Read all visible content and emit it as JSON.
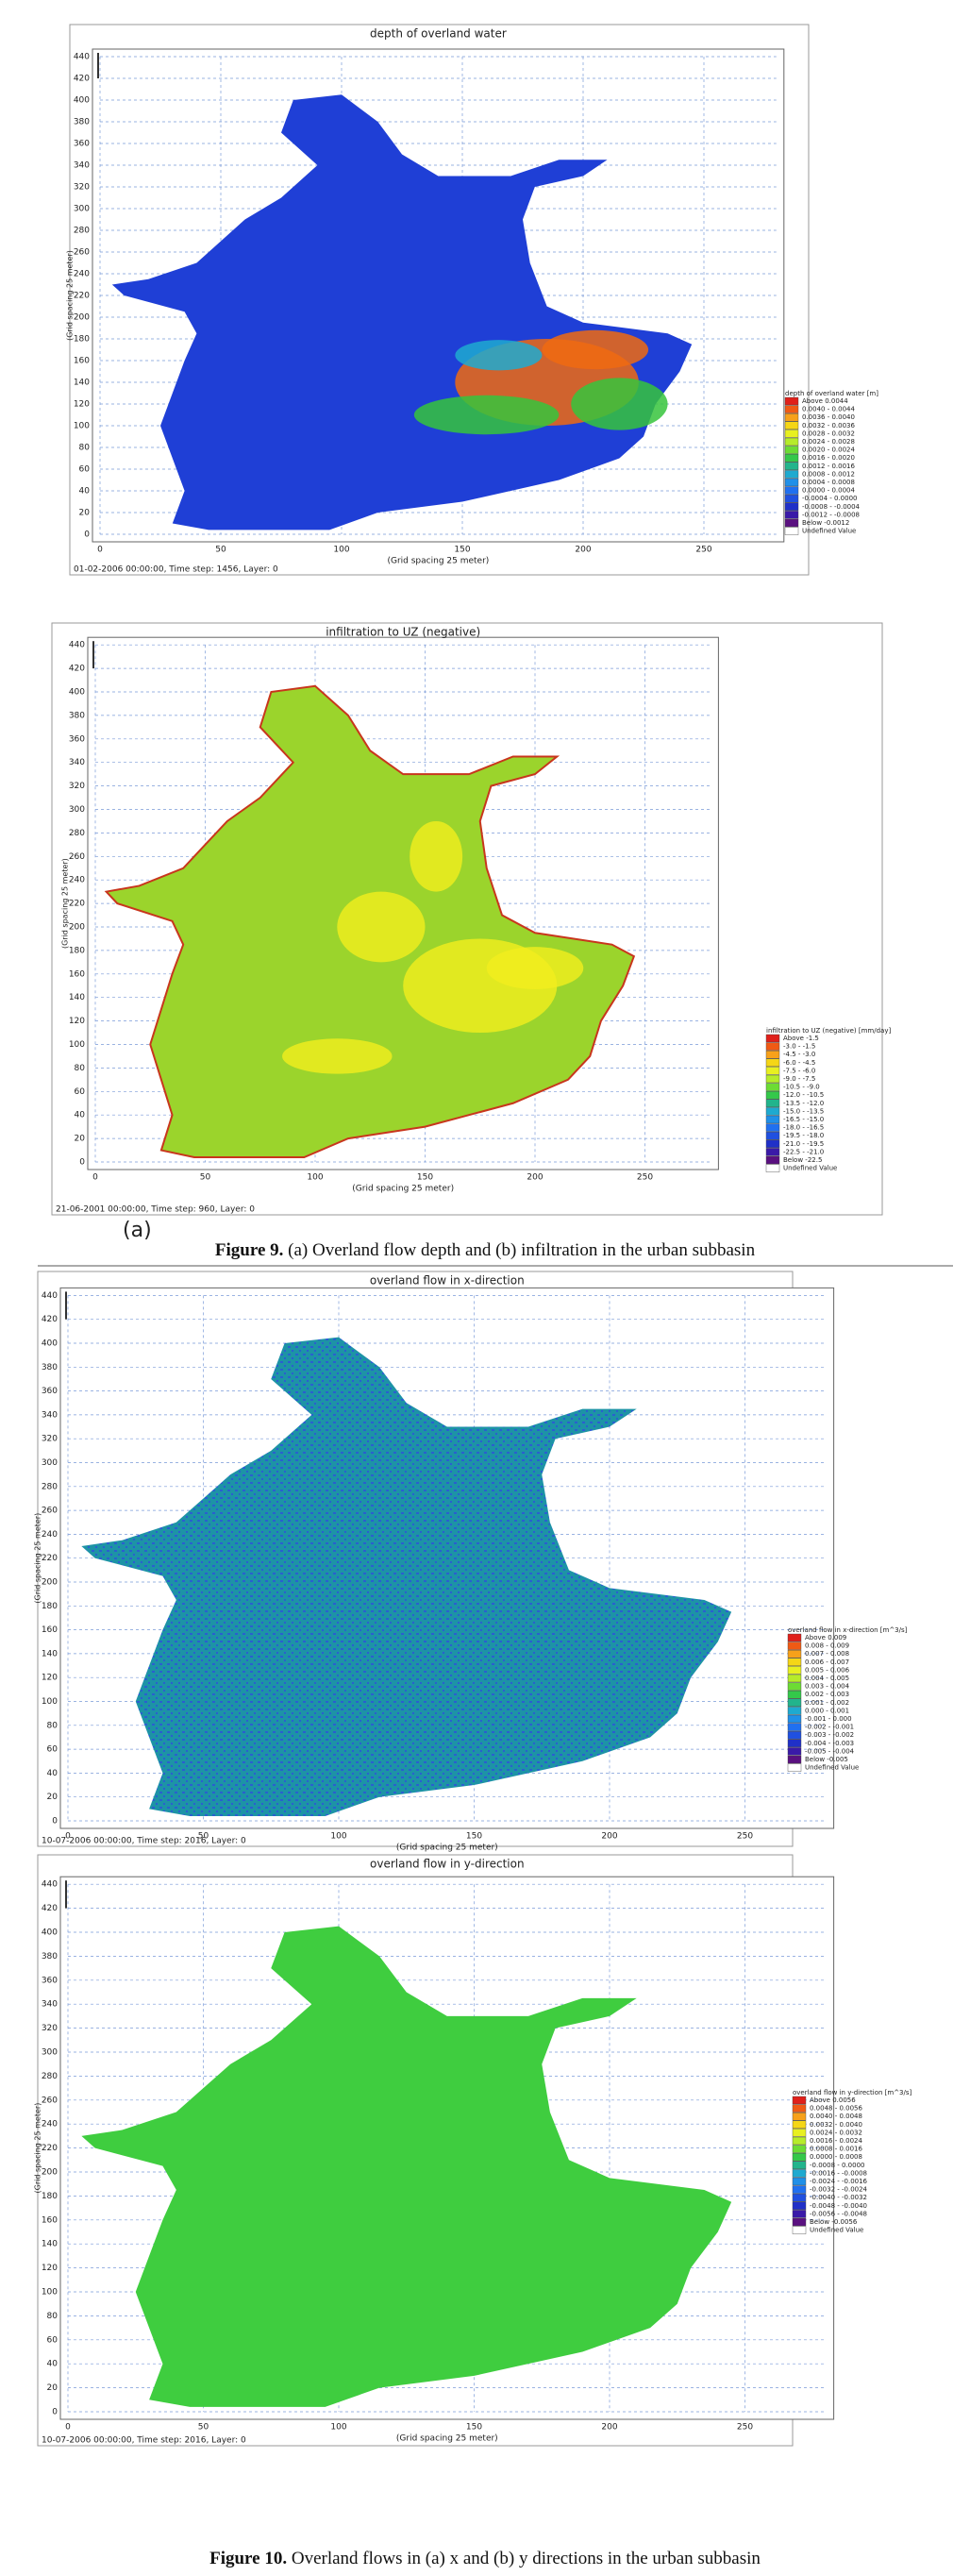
{
  "figures": [
    {
      "title": "depth of overland water",
      "y_label": "(Grid spacing 25 meter)",
      "x_label": "(Grid spacing 25 meter)",
      "footer": "01-02-2006 00:00:00, Time step: 1456, Layer: 0",
      "yticks": [
        0,
        20,
        40,
        60,
        80,
        100,
        120,
        140,
        160,
        180,
        200,
        220,
        240,
        260,
        280,
        300,
        320,
        340,
        360,
        380,
        400,
        420,
        440
      ],
      "xticks": [
        0,
        50,
        100,
        150,
        200,
        250
      ],
      "legend_title": "depth of overland water [m]",
      "legend": [
        "Above 0.0044",
        "0.0040 - 0.0044",
        "0.0036 - 0.0040",
        "0.0032 - 0.0036",
        "0.0028 - 0.0032",
        "0.0024 - 0.0028",
        "0.0020 - 0.0024",
        "0.0016 - 0.0020",
        "0.0012 - 0.0016",
        "0.0008 - 0.0012",
        "0.0004 - 0.0008",
        "0.0000 - 0.0004",
        "-0.0004 - 0.0000",
        "-0.0008 - -0.0004",
        "-0.0012 - -0.0008",
        "Below -0.0012",
        "Undefined Value"
      ]
    },
    {
      "title": "infiltration to UZ (negative)",
      "y_label": "(Grid spacing 25 meter)",
      "x_label": "(Grid spacing 25 meter)",
      "footer": "21-06-2001 00:00:00, Time step: 960, Layer: 0",
      "yticks": [
        0,
        20,
        40,
        60,
        80,
        100,
        120,
        140,
        160,
        180,
        200,
        220,
        240,
        260,
        280,
        300,
        320,
        340,
        360,
        380,
        400,
        420,
        440
      ],
      "xticks": [
        0,
        50,
        100,
        150,
        200,
        250
      ],
      "legend_title": "infiltration to UZ (negative) [mm/day]",
      "legend": [
        "Above -1.5",
        "-3.0 - -1.5",
        "-4.5 - -3.0",
        "-6.0 - -4.5",
        "-7.5 - -6.0",
        "-9.0 - -7.5",
        "-10.5 - -9.0",
        "-12.0 - -10.5",
        "-13.5 - -12.0",
        "-15.0 - -13.5",
        "-16.5 - -15.0",
        "-18.0 - -16.5",
        "-19.5 - -18.0",
        "-21.0 - -19.5",
        "-22.5 - -21.0",
        "Below -22.5",
        "Undefined Value"
      ]
    },
    {
      "title": "overland flow in x-direction",
      "y_label": "(Grid spacing 25 meter)",
      "x_label": "(Grid spacing 25 meter)",
      "footer": "10-07-2006 00:00:00, Time step: 2016, Layer: 0",
      "yticks": [
        0,
        20,
        40,
        60,
        80,
        100,
        120,
        140,
        160,
        180,
        200,
        220,
        240,
        260,
        280,
        300,
        320,
        340,
        360,
        380,
        400,
        420,
        440
      ],
      "xticks": [
        0,
        50,
        100,
        150,
        200,
        250
      ],
      "legend_title": "overland flow in x-direction [m^3/s]",
      "legend": [
        "Above 0.009",
        "0.008 - 0.009",
        "0.007 - 0.008",
        "0.006 - 0.007",
        "0.005 - 0.006",
        "0.004 - 0.005",
        "0.003 - 0.004",
        "0.002 - 0.003",
        "0.001 - 0.002",
        "0.000 - 0.001",
        "-0.001 - 0.000",
        "-0.002 - -0.001",
        "-0.003 - -0.002",
        "-0.004 - -0.003",
        "-0.005 - -0.004",
        "Below -0.005",
        "Undefined Value"
      ]
    },
    {
      "title": "overland flow in y-direction",
      "y_label": "(Grid spacing 25 meter)",
      "x_label": "(Grid spacing 25 meter)",
      "footer": "10-07-2006 00:00:00, Time step: 2016, Layer: 0",
      "yticks": [
        0,
        20,
        40,
        60,
        80,
        100,
        120,
        140,
        160,
        180,
        200,
        220,
        240,
        260,
        280,
        300,
        320,
        340,
        360,
        380,
        400,
        420,
        440
      ],
      "xticks": [
        0,
        50,
        100,
        150,
        200,
        250
      ],
      "legend_title": "overland flow in y-direction [m^3/s]",
      "legend": [
        "Above 0.0056",
        "0.0048 - 0.0056",
        "0.0040 - 0.0048",
        "0.0032 - 0.0040",
        "0.0024 - 0.0032",
        "0.0016 - 0.0024",
        "0.0008 - 0.0016",
        "0.0000 - 0.0008",
        "-0.0008 - 0.0000",
        "-0.0016 - -0.0008",
        "-0.0024 - -0.0016",
        "-0.0032 - -0.0024",
        "-0.0040 - -0.0032",
        "-0.0048 - -0.0040",
        "-0.0056 - -0.0048",
        "Below -0.0056",
        "Undefined Value"
      ]
    }
  ],
  "panel_label": "(a)",
  "captions": [
    {
      "label": "Figure 9.",
      "text": "(a) Overland flow depth and (b) infiltration in the urban subbasin"
    },
    {
      "label": "Figure 10.",
      "text": "Overland flows in (a) x and (b) y directions in the urban subbasin"
    }
  ]
}
